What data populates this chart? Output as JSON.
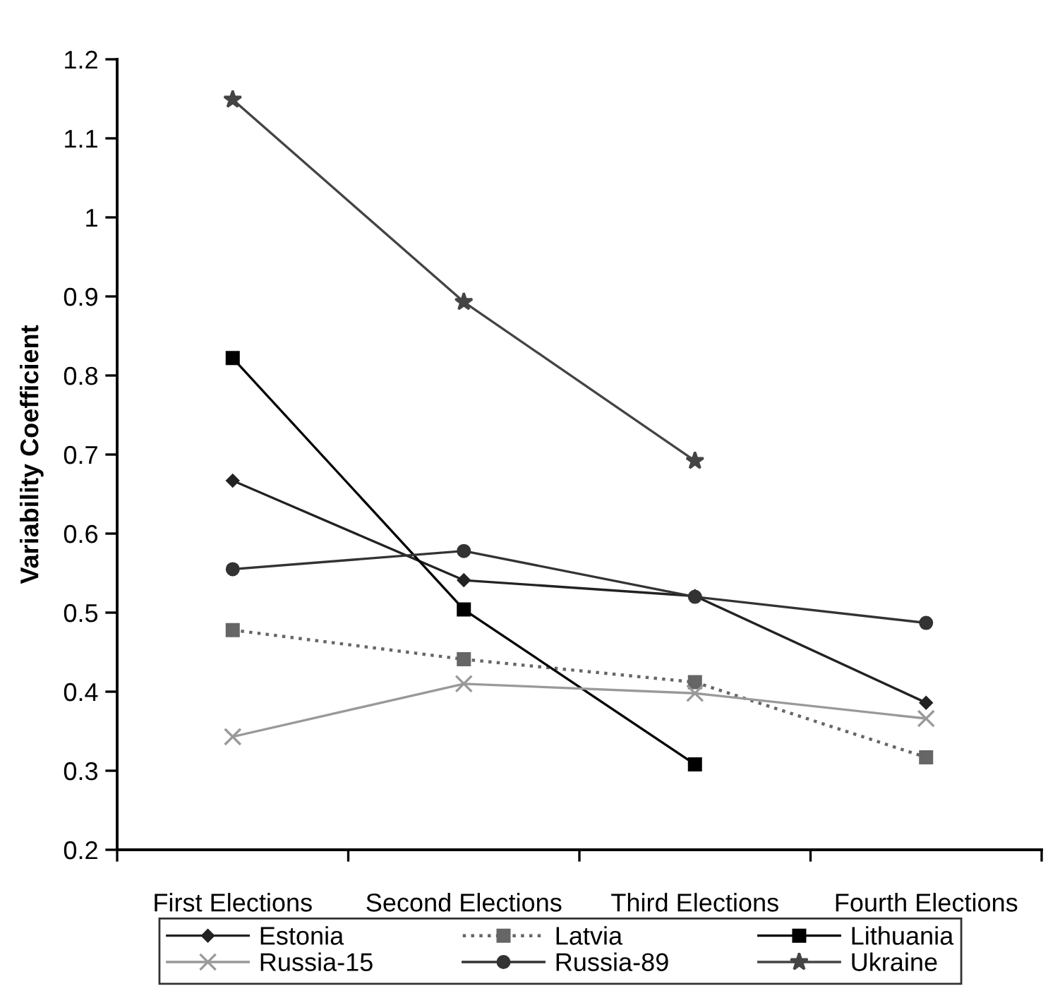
{
  "chart_data": {
    "type": "line",
    "ylabel": "Variability Coefficient",
    "categories": [
      "First Elections",
      "Second Elections",
      "Third Elections",
      "Fourth Elections"
    ],
    "series": [
      {
        "name": "Estonia",
        "color": "#222222",
        "marker": "diamond",
        "line_style": "solid",
        "values": [
          0.667,
          0.541,
          0.521,
          0.386
        ]
      },
      {
        "name": "Latvia",
        "color": "#666666",
        "marker": "square",
        "line_style": "dotted",
        "values": [
          0.478,
          0.441,
          0.412,
          0.317
        ]
      },
      {
        "name": "Lithuania",
        "color": "#000000",
        "marker": "square",
        "line_style": "solid",
        "values": [
          0.822,
          0.504,
          0.308,
          null
        ]
      },
      {
        "name": "Russia-15",
        "color": "#999999",
        "marker": "cross",
        "line_style": "solid",
        "values": [
          0.343,
          0.41,
          0.398,
          0.366
        ]
      },
      {
        "name": "Russia-89",
        "color": "#333333",
        "marker": "circle",
        "line_style": "solid",
        "values": [
          0.555,
          0.578,
          0.52,
          0.487
        ]
      },
      {
        "name": "Ukraine",
        "color": "#444444",
        "marker": "star",
        "line_style": "solid",
        "values": [
          1.149,
          0.893,
          0.692,
          null
        ]
      }
    ],
    "ylim": [
      0.2,
      1.2
    ],
    "yticks": [
      0.2,
      0.3,
      0.4,
      0.5,
      0.6,
      0.7,
      0.8,
      0.9,
      1,
      1.1,
      1.2
    ],
    "grid": false,
    "legend": "bottom"
  }
}
